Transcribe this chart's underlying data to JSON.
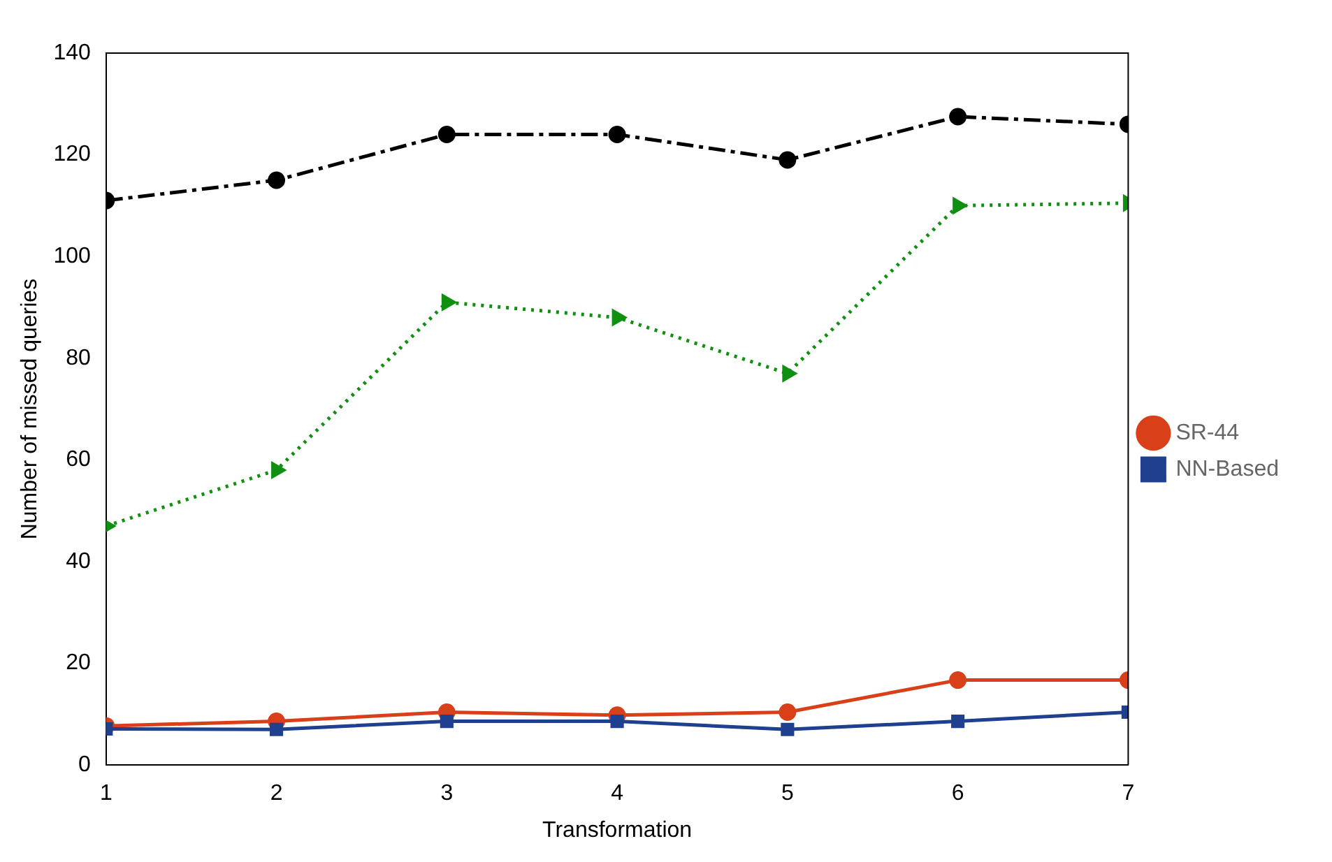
{
  "chart_data": {
    "type": "line",
    "xlabel": "Transformation",
    "ylabel": "Number of missed queries",
    "x": [
      1,
      2,
      3,
      4,
      5,
      6,
      7
    ],
    "xlim": [
      1,
      7
    ],
    "xticks": [
      1,
      2,
      3,
      4,
      5,
      6,
      7
    ],
    "ylim": [
      0,
      140
    ],
    "yticks": [
      0,
      20,
      40,
      60,
      80,
      100,
      120,
      140
    ],
    "grid": false,
    "legend": "right",
    "series": [
      {
        "name": "SR-44",
        "color": "#d9401a",
        "marker": "circle",
        "line_style": "solid",
        "values": [
          7.7,
          8.6,
          10.4,
          9.8,
          10.4,
          16.7,
          16.7
        ]
      },
      {
        "name": "NN-Based",
        "color": "#1f3f8f",
        "marker": "square",
        "line_style": "solid",
        "values": [
          7.1,
          7,
          8.6,
          8.6,
          7,
          8.6,
          10.4
        ]
      },
      {
        "color": "#000000",
        "marker": "circle",
        "line_style": "dashed",
        "values": [
          111,
          115,
          124,
          124,
          119,
          127.5,
          126
        ]
      },
      {
        "color": "#109010",
        "marker": "triangle",
        "line_style": "dotted",
        "values": [
          47,
          58,
          91,
          88,
          77,
          110,
          110.5
        ]
      }
    ]
  }
}
